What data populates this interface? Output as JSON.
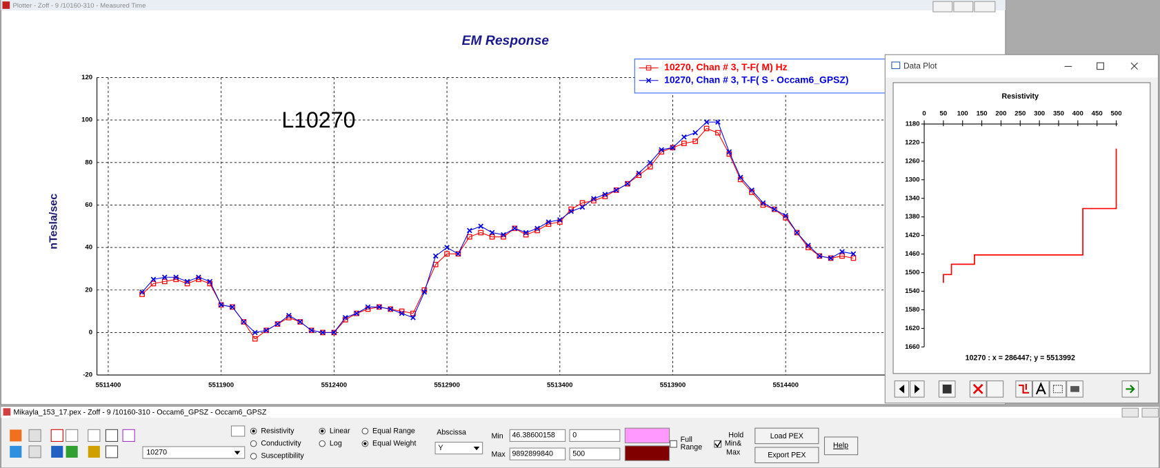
{
  "window": {
    "title": "Plotter - Zoff - 9 /10160-310 - Measured Time"
  },
  "chart_data": [
    {
      "type": "line",
      "title": "EM Response",
      "ylabel": "nTesla/sec",
      "annotation": "L10270",
      "x": [
        5511550,
        5511600,
        5511650,
        5511700,
        5511750,
        5511800,
        5511850,
        5511900,
        5511950,
        5512000,
        5512050,
        5512100,
        5512150,
        5512200,
        5512250,
        5512300,
        5512350,
        5512400,
        5512450,
        5512500,
        5512550,
        5512600,
        5512650,
        5512700,
        5512750,
        5512800,
        5512850,
        5512900,
        5512950,
        5513000,
        5513050,
        5513100,
        5513150,
        5513200,
        5513250,
        5513300,
        5513350,
        5513400,
        5513450,
        5513500,
        5513550,
        5513600,
        5513650,
        5513700,
        5513750,
        5513800,
        5513850,
        5513900,
        5513950,
        5514000,
        5514050,
        5514100,
        5514150,
        5514200,
        5514250,
        5514300,
        5514350,
        5514400,
        5514450,
        5514500,
        5514550,
        5514600,
        5514650,
        5514700
      ],
      "series": [
        {
          "name": "10270, Chan # 3, T-F( M) Hz",
          "color": "#ff0000",
          "marker": "square",
          "values": [
            18,
            23,
            24,
            25,
            23,
            25,
            23,
            13,
            12,
            5,
            -3,
            1,
            4,
            7,
            5,
            1,
            0,
            0,
            6,
            9,
            11,
            12,
            11,
            10,
            9,
            20,
            32,
            37,
            37,
            45,
            47,
            45,
            45,
            49,
            46,
            48,
            51,
            52,
            58,
            61,
            62,
            64,
            67,
            70,
            74,
            78,
            85,
            87,
            89,
            90,
            96,
            94,
            84,
            72,
            66,
            60,
            58,
            54,
            47,
            40,
            36,
            35,
            36,
            35
          ]
        },
        {
          "name": "10270, Chan # 3, T-F( S - Occam6_GPSZ)",
          "color": "#0000e0",
          "marker": "x",
          "values": [
            19,
            25,
            26,
            26,
            24,
            26,
            24,
            13,
            12,
            5,
            0,
            1,
            4,
            8,
            5,
            1,
            0,
            0,
            7,
            9,
            12,
            12,
            11,
            9,
            7,
            19,
            36,
            40,
            37,
            48,
            50,
            47,
            46,
            49,
            47,
            49,
            52,
            53,
            57,
            59,
            63,
            65,
            67,
            70,
            75,
            80,
            86,
            87,
            92,
            94,
            99,
            99,
            85,
            73,
            67,
            61,
            58,
            55,
            47,
            41,
            36,
            35,
            38,
            37
          ]
        }
      ],
      "xlim": [
        5511350,
        5514850
      ],
      "ylim": [
        -20,
        120
      ],
      "xticks": [
        5511400,
        5511900,
        5512400,
        5512900,
        5513400,
        5513900,
        5514400
      ],
      "yticks": [
        -20,
        0,
        20,
        40,
        60,
        80,
        100,
        120
      ],
      "grid": true,
      "legend": "upper right"
    },
    {
      "type": "line",
      "title": "Resistivity",
      "annotation": "10270 : x = 286447; y = 5513992",
      "x": [
        50,
        50,
        71,
        71,
        131,
        131,
        413,
        413,
        500,
        500
      ],
      "values": [
        1522,
        1504,
        1504,
        1482,
        1482,
        1462,
        1462,
        1362,
        1362,
        1233
      ],
      "color": "#ff0000",
      "xlim": [
        0,
        500
      ],
      "ylim": [
        1660,
        1180
      ],
      "xticks": [
        0,
        50,
        100,
        150,
        200,
        250,
        300,
        350,
        400,
        450,
        500
      ],
      "yticks": [
        1660,
        1620,
        1580,
        1540,
        1500,
        1460,
        1420,
        1380,
        1340,
        1300,
        1260,
        1220,
        1180
      ],
      "grid": false,
      "xaxis": "top"
    }
  ],
  "data_plot": {
    "title": "Data Plot"
  },
  "panel": {
    "title": "Mikayla_153_17.pex - Zoff - 9 /10160-310 - Occam6_GPSZ - Occam6_GPSZ",
    "line": "10270",
    "model_options": [
      "Resistivity",
      "Conductivity",
      "Susceptibility"
    ],
    "model_selected": 0,
    "scale_options": [
      "Linear",
      "Log"
    ],
    "scale_selected": 0,
    "weight_options": [
      "Equal Range",
      "Equal Weight"
    ],
    "weight_selected": 1,
    "abscissa_label": "Abscissa",
    "abscissa": "Y",
    "min_label": "Min",
    "min": "46.38600158",
    "max_label": "Max",
    "max": "9892899840",
    "range_min": "0",
    "range_max": "500",
    "min_color": "#ff99ff",
    "max_color": "#800000",
    "full_range": [
      "Full",
      "Range"
    ],
    "full_range_checked": false,
    "hold": [
      "Hold",
      "Min&",
      "Max"
    ],
    "hold_checked": true,
    "load": "Load PEX",
    "export": "Export PEX",
    "help": "Help"
  }
}
